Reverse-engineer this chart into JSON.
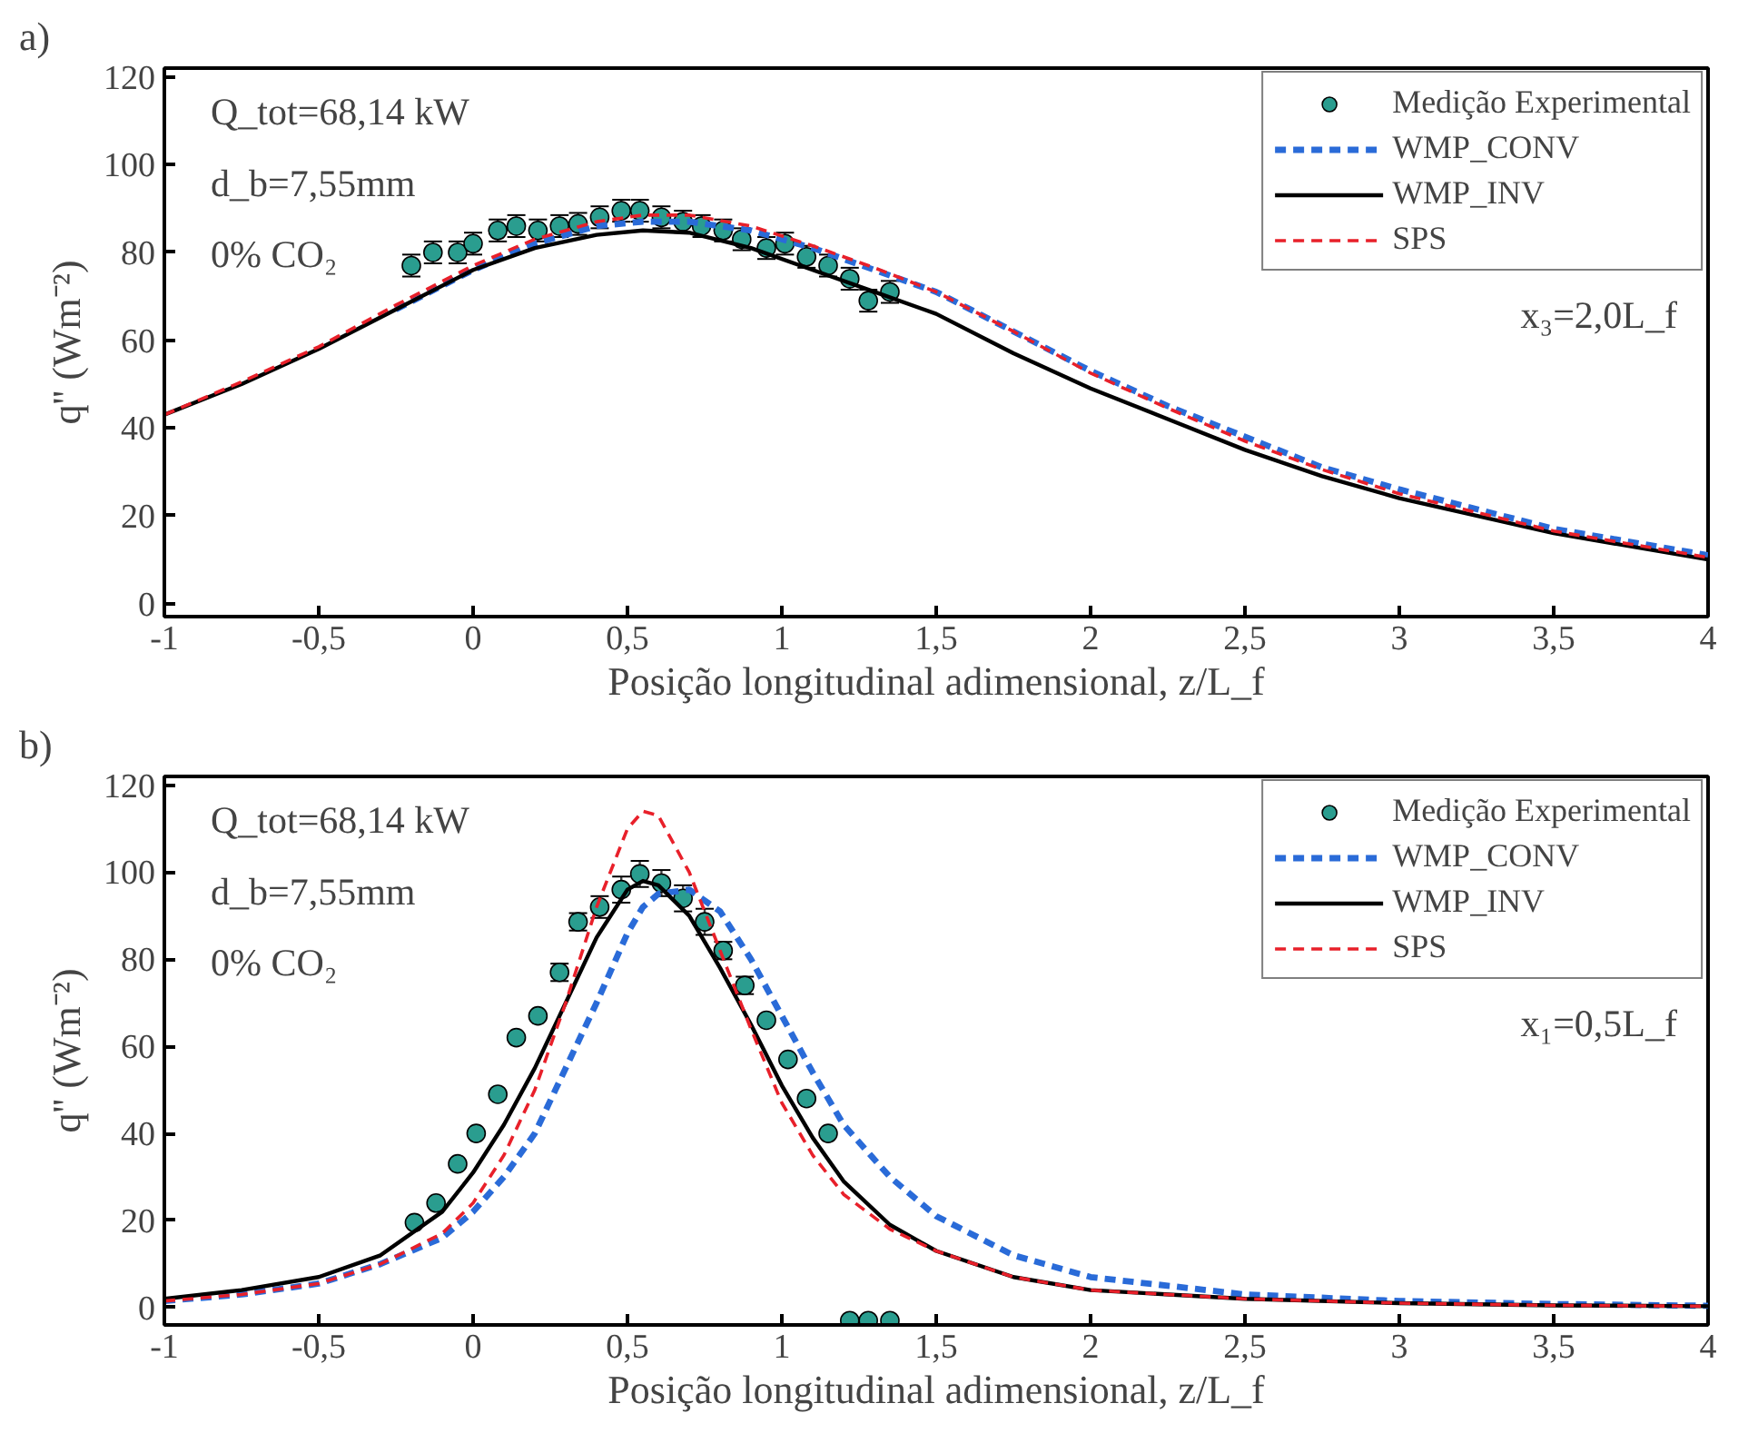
{
  "chart_data": [
    {
      "type": "line",
      "title": "a)",
      "xlabel": "Posição longitudinal adimensional, z/L_f",
      "ylabel": "q'' (Wm⁻²)",
      "xlim": [
        -1,
        4
      ],
      "ylim": [
        -3,
        122
      ],
      "xticks": [
        {
          "value": -1,
          "label": "-1"
        },
        {
          "value": -0.5,
          "label": "-0,5"
        },
        0,
        {
          "value": 0.5,
          "label": "0,5"
        },
        1,
        {
          "value": 1.5,
          "label": "1,5"
        },
        2,
        {
          "value": 2.5,
          "label": "2,5"
        },
        3,
        {
          "value": 3.5,
          "label": "3,5"
        },
        4
      ],
      "yticks": [
        0,
        20,
        40,
        60,
        80,
        100,
        120
      ],
      "grid": false,
      "legend": "top right",
      "annotations": [
        "Q_tot=68,14 kW",
        "d_b=7,55mm",
        "0% CO₂",
        "x₃=2,0L_f"
      ],
      "series": [
        {
          "name": "Medição Experimental",
          "type": "scatter",
          "marker": "circle",
          "color": "#2a9d8f",
          "x": [
            -0.2,
            -0.13,
            -0.05,
            0.0,
            0.08,
            0.14,
            0.21,
            0.28,
            0.34,
            0.41,
            0.48,
            0.54,
            0.61,
            0.68,
            0.74,
            0.81,
            0.87,
            0.95,
            1.01,
            1.08,
            1.15,
            1.22,
            1.28,
            1.35
          ],
          "values": [
            77,
            80,
            80,
            82,
            85,
            86,
            85,
            86,
            86.5,
            88,
            89.5,
            89.5,
            88,
            87,
            86,
            85,
            83,
            81,
            82,
            79,
            77,
            74,
            69,
            71
          ],
          "errors": [
            2.5,
            2.5,
            2.5,
            2.5,
            2.5,
            2.5,
            2.5,
            2.5,
            2.5,
            2.5,
            2.5,
            2.5,
            2.5,
            2.5,
            2.5,
            2.5,
            2.5,
            2.5,
            2.5,
            2.5,
            2.5,
            2.5,
            2.5,
            2.5
          ]
        },
        {
          "name": "WMP_CONV",
          "type": "line",
          "line_style": "dashed",
          "color": "#2a6bd8",
          "x": [
            -0.25,
            0,
            0.2,
            0.4,
            0.55,
            0.7,
            0.9,
            1.1,
            1.3,
            1.5,
            1.75,
            2,
            2.25,
            2.5,
            2.75,
            3,
            3.5,
            4
          ],
          "values": [
            67,
            76,
            82,
            86,
            87,
            87,
            85,
            81,
            76,
            71,
            62,
            53,
            45,
            38,
            31,
            26,
            17,
            11
          ]
        },
        {
          "name": "WMP_INV",
          "type": "line",
          "line_style": "solid",
          "color": "#000000",
          "x": [
            -1,
            -0.75,
            -0.5,
            -0.25,
            0,
            0.2,
            0.4,
            0.55,
            0.7,
            0.9,
            1.1,
            1.3,
            1.5,
            1.75,
            2,
            2.25,
            2.5,
            2.75,
            3,
            3.5,
            4
          ],
          "values": [
            43,
            50,
            58,
            67,
            76,
            81,
            84,
            85,
            84.5,
            81,
            76,
            71,
            66,
            57,
            49,
            42,
            35,
            29,
            24,
            16,
            10
          ]
        },
        {
          "name": "SPS",
          "type": "line",
          "line_style": "dashed",
          "color": "#e8202a",
          "x": [
            -1,
            -0.75,
            -0.5,
            -0.25,
            0,
            0.2,
            0.4,
            0.55,
            0.7,
            0.9,
            1.1,
            1.3,
            1.5,
            1.75,
            2,
            2.25,
            2.5,
            2.75,
            3,
            3.5,
            4
          ],
          "values": [
            43,
            50.5,
            58.5,
            68,
            77,
            83,
            87,
            88.5,
            88.5,
            86,
            81.5,
            76.5,
            71,
            62,
            52.5,
            44.5,
            37,
            30.5,
            25,
            16.5,
            10.5
          ]
        }
      ]
    },
    {
      "type": "line",
      "title": "b)",
      "xlabel": "Posição longitudinal adimensional, z/L_f",
      "ylabel": "q'' (Wm⁻²)",
      "xlim": [
        -1,
        4
      ],
      "ylim": [
        -4,
        122
      ],
      "xticks": [
        {
          "value": -1,
          "label": "-1"
        },
        {
          "value": -0.5,
          "label": "-0,5"
        },
        0,
        {
          "value": 0.5,
          "label": "0,5"
        },
        1,
        {
          "value": 1.5,
          "label": "1,5"
        },
        2,
        {
          "value": 2.5,
          "label": "2,5"
        },
        3,
        {
          "value": 3.5,
          "label": "3,5"
        },
        4
      ],
      "yticks": [
        0,
        20,
        40,
        60,
        80,
        100,
        120
      ],
      "grid": false,
      "legend": "top right",
      "annotations": [
        "Q_tot=68,14 kW",
        "d_b=7,55mm",
        "0% CO₂",
        "x₁=0,5L_f"
      ],
      "series": [
        {
          "name": "Medição Experimental",
          "type": "scatter",
          "marker": "circle",
          "color": "#2a9d8f",
          "x": [
            -0.19,
            -0.12,
            -0.05,
            0.01,
            0.08,
            0.14,
            0.21,
            0.28,
            0.34,
            0.41,
            0.48,
            0.54,
            0.61,
            0.68,
            0.75,
            0.81,
            0.88,
            0.95,
            1.02,
            1.08,
            1.15,
            1.22,
            1.28,
            1.35
          ],
          "values": [
            19.5,
            24,
            33,
            40,
            49,
            62,
            67,
            77,
            88.6,
            92,
            96,
            99.6,
            97.5,
            94,
            88.6,
            82,
            74,
            66,
            57,
            48,
            40,
            -3,
            -3,
            -3
          ],
          "errors": [
            null,
            null,
            null,
            null,
            null,
            null,
            null,
            2,
            2,
            2.5,
            3,
            3,
            3,
            3,
            3,
            2,
            2,
            null,
            null,
            null,
            null,
            null,
            null,
            null
          ]
        },
        {
          "name": "WMP_CONV",
          "type": "line",
          "line_style": "dashed",
          "color": "#2a6bd8",
          "x": [
            -1,
            -0.75,
            -0.5,
            -0.3,
            -0.1,
            0,
            0.1,
            0.2,
            0.3,
            0.4,
            0.5,
            0.55,
            0.6,
            0.7,
            0.8,
            0.9,
            1,
            1.1,
            1.2,
            1.35,
            1.5,
            1.75,
            2,
            2.5,
            3,
            3.5,
            4
          ],
          "values": [
            1.5,
            3,
            5.5,
            10,
            16,
            22,
            30,
            40,
            55,
            70,
            86,
            92,
            95,
            96,
            91,
            80,
            67,
            54,
            42,
            30,
            21,
            12,
            7,
            3,
            1.5,
            0.8,
            0.4
          ]
        },
        {
          "name": "WMP_INV",
          "type": "line",
          "line_style": "solid",
          "color": "#000000",
          "x": [
            -1,
            -0.75,
            -0.5,
            -0.3,
            -0.1,
            0,
            0.1,
            0.2,
            0.3,
            0.4,
            0.5,
            0.55,
            0.6,
            0.7,
            0.8,
            0.9,
            1,
            1.1,
            1.2,
            1.35,
            1.5,
            1.75,
            2,
            2.5,
            3,
            3.5,
            4
          ],
          "values": [
            2,
            4,
            7,
            12,
            22,
            31,
            42,
            55,
            70,
            85,
            96,
            98,
            97,
            90,
            78,
            65,
            51,
            39,
            29,
            19,
            13,
            7,
            4,
            2,
            1,
            0.5,
            0.3
          ]
        },
        {
          "name": "SPS",
          "type": "line",
          "line_style": "dashed",
          "color": "#e8202a",
          "x": [
            -1,
            -0.75,
            -0.5,
            -0.3,
            -0.1,
            0,
            0.1,
            0.2,
            0.3,
            0.4,
            0.5,
            0.55,
            0.6,
            0.7,
            0.8,
            0.9,
            1,
            1.1,
            1.2,
            1.35,
            1.5,
            1.75,
            2,
            2.5,
            3,
            3.5,
            4
          ],
          "values": [
            1.5,
            3,
            5.5,
            10,
            17,
            24,
            35,
            50,
            70,
            92,
            110,
            114,
            113,
            100,
            82,
            64,
            47,
            35,
            26,
            18,
            13,
            7,
            4,
            2,
            1,
            0.5,
            0.3
          ]
        }
      ]
    }
  ]
}
